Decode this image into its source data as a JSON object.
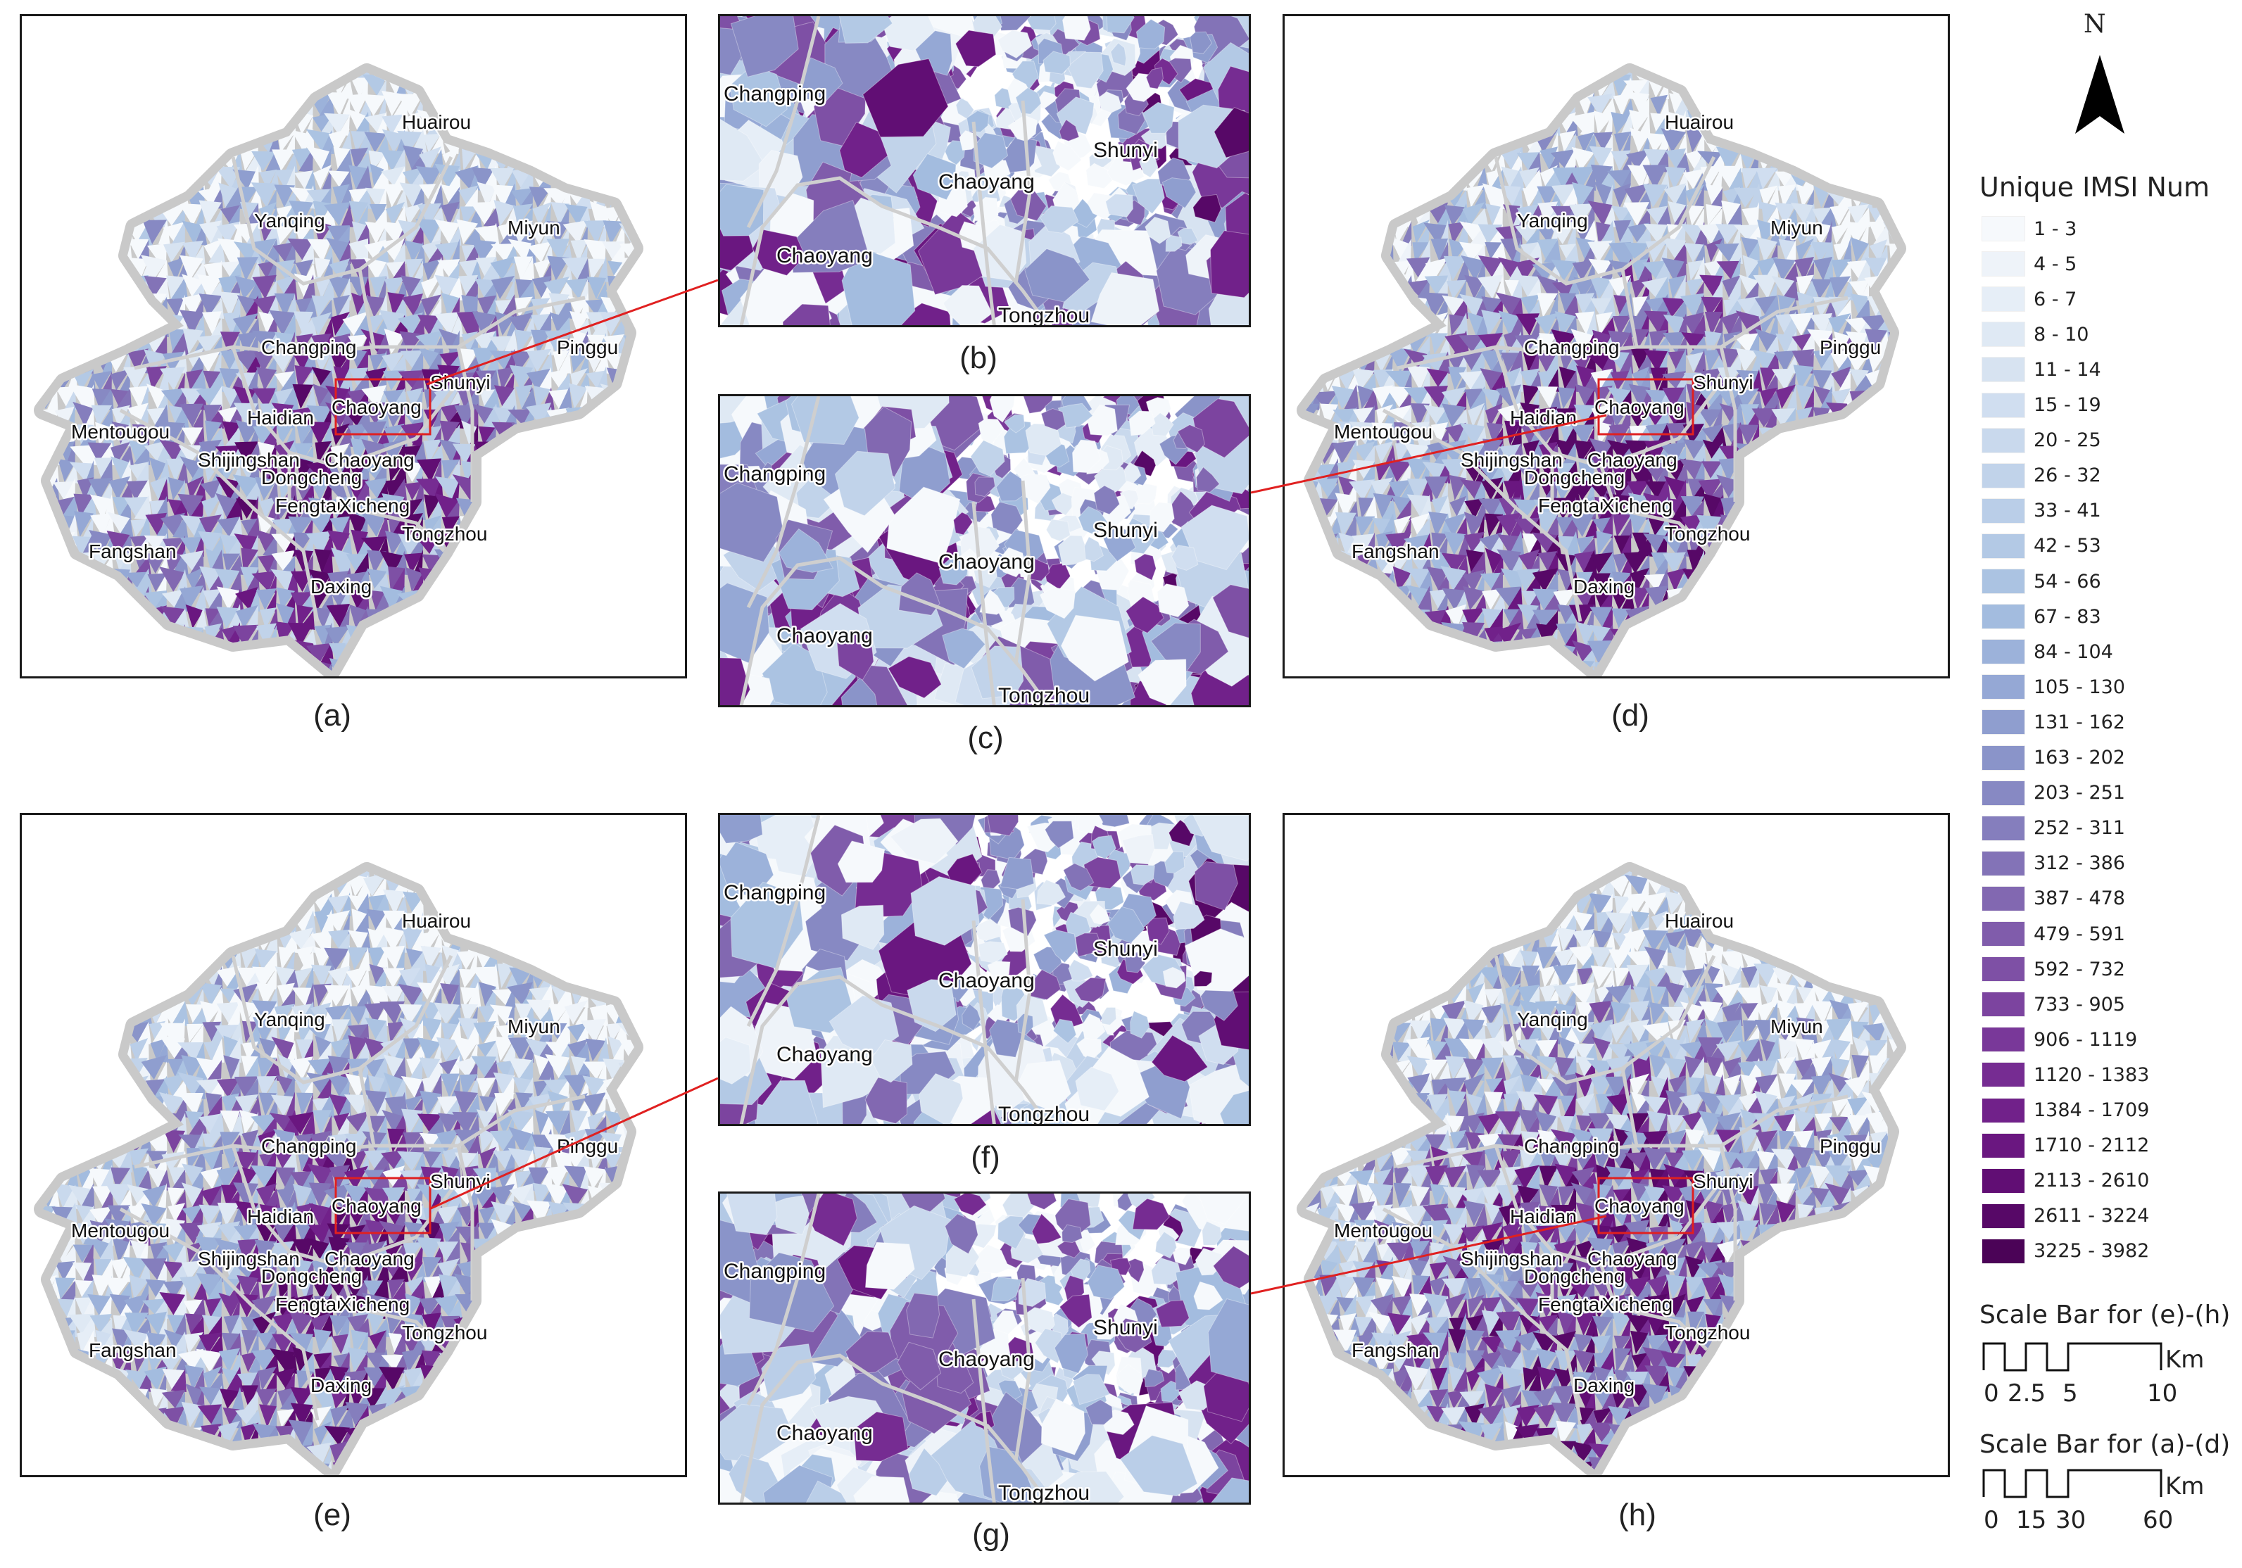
{
  "north_label": "N",
  "legend": {
    "title": "Unique IMSI Num",
    "classes": [
      {
        "label": "1 - 3",
        "color": "#f6f9fc"
      },
      {
        "label": "4 - 5",
        "color": "#eef3f9"
      },
      {
        "label": "6 - 7",
        "color": "#e6eef7"
      },
      {
        "label": "8 - 10",
        "color": "#dfe9f4"
      },
      {
        "label": "11 - 14",
        "color": "#d7e3f1"
      },
      {
        "label": "15 - 19",
        "color": "#d0def0"
      },
      {
        "label": "20 - 25",
        "color": "#c9d9ed"
      },
      {
        "label": "26 - 32",
        "color": "#c1d3ea"
      },
      {
        "label": "33 - 41",
        "color": "#bacee8"
      },
      {
        "label": "42 - 53",
        "color": "#b3c9e5"
      },
      {
        "label": "54 - 66",
        "color": "#abc3e2"
      },
      {
        "label": "67 - 83",
        "color": "#a3bcdf"
      },
      {
        "label": "84 - 104",
        "color": "#9cb2da"
      },
      {
        "label": "105 - 130",
        "color": "#95a8d5"
      },
      {
        "label": "131 - 162",
        "color": "#8f9ecf"
      },
      {
        "label": "163 - 202",
        "color": "#8a94c9"
      },
      {
        "label": "203 - 251",
        "color": "#8789c3"
      },
      {
        "label": "252 - 311",
        "color": "#857ebd"
      },
      {
        "label": "312 - 386",
        "color": "#8373b7"
      },
      {
        "label": "387 - 478",
        "color": "#8268b1"
      },
      {
        "label": "479 - 591",
        "color": "#805cab"
      },
      {
        "label": "592 - 732",
        "color": "#7e50a5"
      },
      {
        "label": "733 - 905",
        "color": "#7c449f"
      },
      {
        "label": "906 - 1119",
        "color": "#793899"
      },
      {
        "label": "1120 - 1383",
        "color": "#762c92"
      },
      {
        "label": "1384 - 1709",
        "color": "#71218a"
      },
      {
        "label": "1710 - 2112",
        "color": "#6a1780"
      },
      {
        "label": "2113 - 2610",
        "color": "#610e74"
      },
      {
        "label": "2611 - 3224",
        "color": "#570867"
      },
      {
        "label": "3225 - 3982",
        "color": "#4b0357"
      }
    ]
  },
  "scale_bars": [
    {
      "title": "Scale Bar for (e)-(h)",
      "unit": "Km",
      "ticks": [
        "0",
        "2.5",
        "5",
        "10"
      ]
    },
    {
      "title": "Scale Bar for (a)-(d)",
      "unit": "Km",
      "ticks": [
        "0",
        "15",
        "30",
        "60"
      ]
    }
  ],
  "district_labels": [
    "Huairou",
    "Yanqing",
    "Miyun",
    "Changping",
    "Pinggu",
    "Shunyi",
    "Chaoyang",
    "Haidian",
    "Mentougou",
    "Shijingshan",
    "Chaoyang",
    "Dongcheng",
    "Fengtai",
    "Xicheng",
    "Tongzhou",
    "Fangshan",
    "Daxing"
  ],
  "inset_labels": [
    "Changping",
    "Shunyi",
    "Chaoyang",
    "Chaoyang",
    "Tongzhou"
  ],
  "panels": [
    {
      "id": "a",
      "caption": "(a)",
      "kind": "map"
    },
    {
      "id": "b",
      "caption": "(b)",
      "kind": "inset"
    },
    {
      "id": "c",
      "caption": "(c)",
      "kind": "inset"
    },
    {
      "id": "d",
      "caption": "(d)",
      "kind": "map"
    },
    {
      "id": "e",
      "caption": "(e)",
      "kind": "map"
    },
    {
      "id": "f",
      "caption": "(f)",
      "kind": "inset"
    },
    {
      "id": "g",
      "caption": "(g)",
      "kind": "inset"
    },
    {
      "id": "h",
      "caption": "(h)",
      "kind": "map"
    }
  ]
}
